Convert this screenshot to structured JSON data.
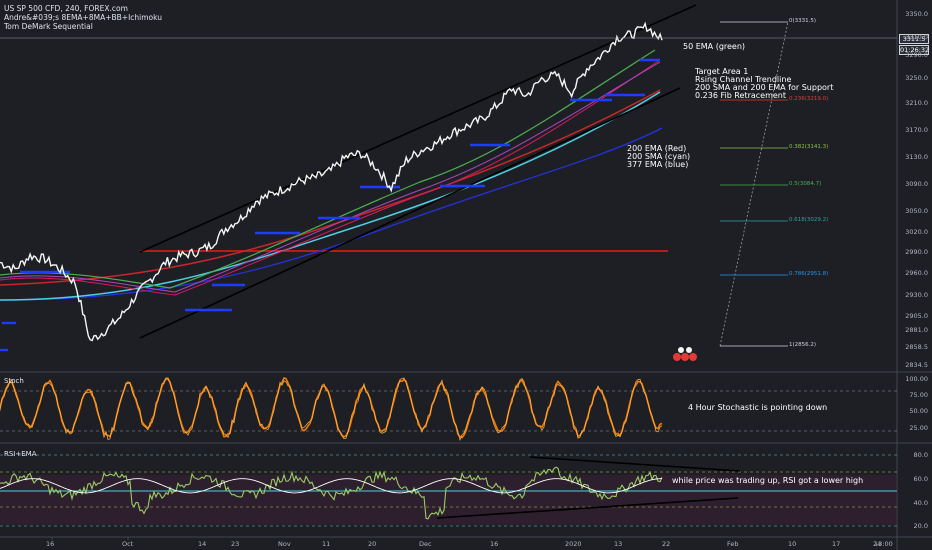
{
  "header": {
    "symbol": "US SP 500 CFD, 240, FOREX.com",
    "indicator_1": "Andre&#039;s 8EMA+8MA+BB+Ichimoku",
    "indicator_2": "Tom DeMark Sequential"
  },
  "price_tag": {
    "price": "3311.5",
    "countdown": "01:26:32"
  },
  "annotations": {
    "ema50": "50 EMA (green)",
    "target_1": "Target Area 1",
    "target_2": "Rsing Channel Trendline",
    "target_3": "200 SMA and 200 EMA for Support",
    "target_4": "0.236 Fib Retracement",
    "ma_1": "200 EMA (Red)",
    "ma_2": "200 SMA (cyan)",
    "ma_3": "377 EMA (blue)",
    "stoch_note": "4 Hour Stochastic is pointing down",
    "rsi_note": "while price was trading up, RSI got a lower high"
  },
  "fib_levels": [
    {
      "label": "0(3331.5)",
      "color": "#d1d4dc"
    },
    {
      "label": "0.236(3219.0)",
      "color": "#e53935"
    },
    {
      "label": "0.382(3141.3)",
      "color": "#8bc34a"
    },
    {
      "label": "0.5(3084.7)",
      "color": "#4caf50"
    },
    {
      "label": "0.618(3029.2)",
      "color": "#26a69a"
    },
    {
      "label": "0.786(2951.8)",
      "color": "#2196f3"
    },
    {
      "label": "1(2856.2)",
      "color": "#d1d4dc"
    }
  ],
  "panes": {
    "stoch_title": "Stoch",
    "rsi_title": "RSI+EMA"
  },
  "chart_data": [
    {
      "type": "line",
      "title": "US SP 500 CFD, 240, FOREX.com",
      "y_axis_ticks": [
        "3350.0",
        "3310.0",
        "3290.0",
        "3250.0",
        "3210.0",
        "3170.0",
        "3130.0",
        "3090.0",
        "3050.0",
        "3020.0",
        "2990.0",
        "2960.0",
        "2930.0",
        "2905.0",
        "2881.0",
        "2858.5",
        "2834.5"
      ],
      "x_axis_ticks": [
        "16",
        "Oct",
        "14",
        "23",
        "Nov",
        "11",
        "20",
        "Dec",
        "16",
        "2020",
        "13",
        "22",
        "Feb",
        "10",
        "17",
        "24",
        "13:00"
      ],
      "ylim": [
        2834.5,
        3350
      ],
      "series": [
        {
          "values": [
            2985,
            2975,
            2995,
            2990,
            2975,
            2955,
            2870,
            2885,
            2905,
            2935,
            2960,
            2985,
            2995,
            3000,
            3010,
            3035,
            3050,
            3075,
            3085,
            3095,
            3105,
            3110,
            3120,
            3140,
            3145,
            3125,
            3095,
            3135,
            3150,
            3160,
            3175,
            3185,
            3195,
            3215,
            3240,
            3230,
            3255,
            3260,
            3235,
            3270,
            3290,
            3315,
            3320,
            3331.5,
            3311.5
          ]
        }
      ]
    },
    {
      "type": "line",
      "title": "Stoch",
      "y_axis_ticks": [
        "100.00",
        "75.00",
        "50.00",
        "25.00"
      ],
      "ylim": [
        10,
        105
      ]
    },
    {
      "type": "line",
      "title": "RSI+EMA",
      "y_axis_ticks": [
        "80.0",
        "60.0",
        "40.0",
        "20.0"
      ],
      "ylim": [
        15,
        85
      ]
    }
  ]
}
